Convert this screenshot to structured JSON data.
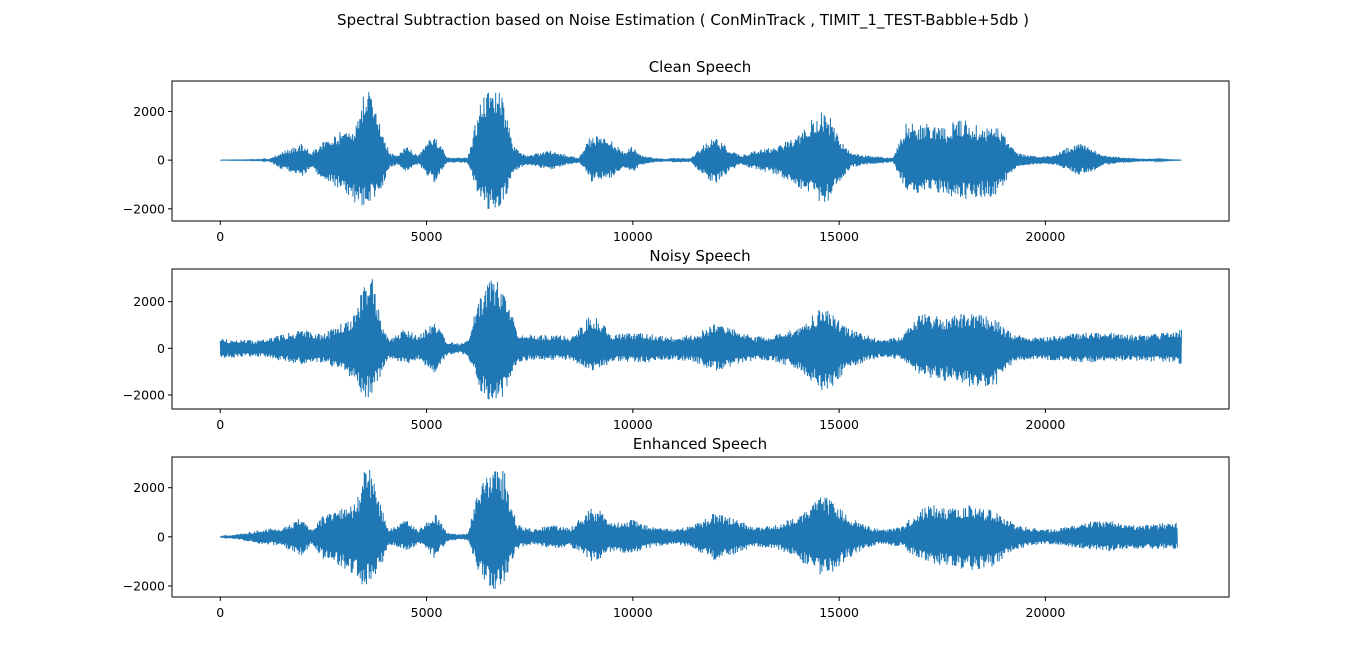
{
  "figure": {
    "suptitle": "Spectral Subtraction based on Noise Estimation ( ConMinTrack , TIMIT_1_TEST-Babble+5db )"
  },
  "chart_data": [
    {
      "type": "line",
      "title": "Clean Speech",
      "xlabel": "",
      "ylabel": "",
      "xlim": [
        -1170,
        24450
      ],
      "ylim": [
        -2500,
        3250
      ],
      "x_ticks": [
        0,
        5000,
        10000,
        15000,
        20000
      ],
      "x_tick_labels": [
        "0",
        "5000",
        "10000",
        "15000",
        "20000"
      ],
      "y_ticks": [
        -2000,
        0,
        2000
      ],
      "y_tick_labels": [
        "−2000",
        "0",
        "2000"
      ],
      "color": "#1f77b4",
      "grid": false,
      "n_samples": 23300,
      "envelope_x": [
        0,
        1000,
        1200,
        1500,
        2000,
        2200,
        2500,
        2800,
        3000,
        3300,
        3500,
        3700,
        3900,
        4100,
        4300,
        4500,
        4800,
        5000,
        5200,
        5500,
        5800,
        6000,
        6300,
        6500,
        6700,
        6900,
        7100,
        7400,
        7700,
        8000,
        8300,
        8700,
        9000,
        9200,
        9500,
        9800,
        10000,
        10200,
        10500,
        10800,
        11000,
        11400,
        11800,
        12000,
        12300,
        12600,
        12800,
        13000,
        13500,
        14000,
        14300,
        14600,
        14800,
        15000,
        15300,
        15600,
        16000,
        16300,
        16600,
        17000,
        17300,
        17600,
        17900,
        18200,
        18500,
        18800,
        19000,
        19300,
        19600,
        19900,
        20200,
        20500,
        20800,
        21100,
        21400,
        21700,
        22000,
        22300,
        22600,
        23000,
        23300
      ],
      "envelope_pos": [
        5,
        20,
        60,
        350,
        700,
        300,
        800,
        1000,
        1300,
        1500,
        3000,
        2900,
        1500,
        300,
        200,
        600,
        200,
        700,
        1100,
        100,
        100,
        120,
        2400,
        3000,
        3000,
        2400,
        600,
        200,
        300,
        400,
        250,
        100,
        1100,
        1000,
        800,
        300,
        600,
        200,
        100,
        50,
        100,
        80,
        800,
        1000,
        500,
        200,
        300,
        400,
        600,
        1100,
        1600,
        2000,
        1800,
        900,
        300,
        200,
        150,
        80,
        1500,
        1500,
        1500,
        1300,
        1800,
        1500,
        1400,
        1400,
        1000,
        300,
        200,
        150,
        200,
        500,
        700,
        500,
        200,
        150,
        100,
        70,
        50,
        20,
        5
      ],
      "envelope_neg": [
        -5,
        -20,
        -60,
        -400,
        -700,
        -300,
        -900,
        -1100,
        -1300,
        -1900,
        -1900,
        -1700,
        -1300,
        -300,
        -200,
        -500,
        -200,
        -600,
        -1000,
        -100,
        -100,
        -120,
        -1700,
        -2100,
        -2000,
        -1700,
        -500,
        -200,
        -300,
        -400,
        -250,
        -100,
        -900,
        -800,
        -700,
        -300,
        -500,
        -200,
        -100,
        -50,
        -100,
        -80,
        -800,
        -1000,
        -500,
        -200,
        -300,
        -400,
        -600,
        -1100,
        -1400,
        -1800,
        -1600,
        -900,
        -300,
        -200,
        -150,
        -80,
        -1200,
        -1400,
        -1300,
        -1500,
        -1600,
        -1700,
        -1500,
        -1500,
        -1000,
        -300,
        -200,
        -150,
        -200,
        -400,
        -600,
        -500,
        -200,
        -150,
        -100,
        -70,
        -50,
        -20,
        -5
      ]
    },
    {
      "type": "line",
      "title": "Noisy Speech",
      "xlabel": "",
      "ylabel": "",
      "xlim": [
        -1170,
        24450
      ],
      "ylim": [
        -2600,
        3400
      ],
      "x_ticks": [
        0,
        5000,
        10000,
        15000,
        20000
      ],
      "x_tick_labels": [
        "0",
        "5000",
        "10000",
        "15000",
        "20000"
      ],
      "y_ticks": [
        -2000,
        0,
        2000
      ],
      "y_tick_labels": [
        "−2000",
        "0",
        "2000"
      ],
      "color": "#1f77b4",
      "grid": false,
      "n_samples": 23300,
      "envelope_x": [
        0,
        1000,
        1500,
        2000,
        2500,
        2800,
        3000,
        3300,
        3500,
        3700,
        3900,
        4100,
        4500,
        4800,
        5000,
        5200,
        5500,
        5800,
        6000,
        6300,
        6500,
        6700,
        6900,
        7200,
        7600,
        8000,
        8500,
        9000,
        9200,
        9500,
        10000,
        10500,
        11000,
        11500,
        12000,
        12500,
        13000,
        13500,
        14000,
        14300,
        14600,
        14800,
        15200,
        15600,
        16000,
        16500,
        17000,
        17300,
        17600,
        17900,
        18200,
        18500,
        18800,
        19000,
        19300,
        19600,
        20000,
        20500,
        21000,
        21500,
        22000,
        22500,
        23000,
        23300
      ],
      "envelope_pos": [
        400,
        350,
        600,
        800,
        600,
        1000,
        1100,
        1500,
        3200,
        3000,
        1200,
        400,
        900,
        500,
        900,
        1200,
        300,
        200,
        400,
        2400,
        3000,
        3100,
        2600,
        600,
        600,
        600,
        500,
        1500,
        1300,
        600,
        700,
        600,
        500,
        600,
        1100,
        800,
        500,
        600,
        900,
        1400,
        1800,
        1600,
        900,
        600,
        400,
        500,
        1600,
        1500,
        1400,
        1500,
        1600,
        1400,
        1300,
        900,
        600,
        500,
        500,
        600,
        700,
        700,
        600,
        600,
        700,
        800
      ],
      "envelope_neg": [
        -400,
        -350,
        -550,
        -700,
        -600,
        -900,
        -1100,
        -1500,
        -2200,
        -2000,
        -1200,
        -400,
        -700,
        -500,
        -800,
        -1100,
        -300,
        -200,
        -400,
        -1800,
        -2200,
        -2300,
        -2000,
        -600,
        -500,
        -500,
        -500,
        -1000,
        -900,
        -600,
        -600,
        -600,
        -500,
        -600,
        -1000,
        -700,
        -500,
        -600,
        -900,
        -1400,
        -1900,
        -1700,
        -900,
        -600,
        -400,
        -500,
        -1200,
        -1300,
        -1400,
        -1500,
        -1700,
        -1800,
        -1700,
        -900,
        -600,
        -500,
        -500,
        -600,
        -600,
        -600,
        -500,
        -600,
        -600,
        -700
      ]
    },
    {
      "type": "line",
      "title": "Enhanced Speech",
      "xlabel": "",
      "ylabel": "",
      "xlim": [
        -1170,
        24450
      ],
      "ylim": [
        -2450,
        3250
      ],
      "x_ticks": [
        0,
        5000,
        10000,
        15000,
        20000
      ],
      "x_tick_labels": [
        "0",
        "5000",
        "10000",
        "15000",
        "20000"
      ],
      "y_ticks": [
        -2000,
        0,
        2000
      ],
      "y_tick_labels": [
        "−2000",
        "0",
        "2000"
      ],
      "color": "#1f77b4",
      "grid": false,
      "n_samples": 23200,
      "envelope_x": [
        0,
        400,
        1000,
        1500,
        2000,
        2200,
        2500,
        2800,
        3000,
        3300,
        3500,
        3700,
        3900,
        4100,
        4500,
        4800,
        5000,
        5200,
        5500,
        5800,
        6000,
        6300,
        6500,
        6700,
        6900,
        7200,
        7600,
        8000,
        8500,
        9000,
        9200,
        9500,
        10000,
        10500,
        11000,
        11500,
        12000,
        12500,
        13000,
        13500,
        14000,
        14300,
        14600,
        14800,
        15200,
        15600,
        16000,
        16500,
        17000,
        17300,
        17600,
        17900,
        18200,
        18500,
        18800,
        19000,
        19300,
        19600,
        20000,
        20500,
        21000,
        21500,
        22000,
        22500,
        23000,
        23200
      ],
      "envelope_pos": [
        10,
        100,
        300,
        400,
        800,
        300,
        900,
        1100,
        1300,
        1400,
        2800,
        2700,
        1200,
        300,
        700,
        300,
        600,
        1000,
        200,
        100,
        150,
        2200,
        2700,
        3000,
        2600,
        500,
        300,
        500,
        400,
        1200,
        1100,
        600,
        700,
        400,
        300,
        500,
        1000,
        700,
        400,
        500,
        900,
        1400,
        1700,
        1500,
        900,
        500,
        300,
        400,
        1200,
        1300,
        1200,
        1300,
        1400,
        1200,
        1100,
        800,
        500,
        400,
        300,
        400,
        600,
        700,
        500,
        500,
        600,
        600
      ],
      "envelope_neg": [
        -10,
        -100,
        -300,
        -400,
        -800,
        -300,
        -900,
        -1100,
        -1300,
        -1700,
        -2100,
        -1800,
        -1200,
        -300,
        -600,
        -300,
        -500,
        -900,
        -200,
        -100,
        -150,
        -1600,
        -2000,
        -2200,
        -1800,
        -500,
        -300,
        -500,
        -400,
        -1000,
        -900,
        -600,
        -700,
        -400,
        -300,
        -500,
        -1000,
        -700,
        -400,
        -500,
        -900,
        -1300,
        -1700,
        -1500,
        -900,
        -500,
        -300,
        -400,
        -1000,
        -1100,
        -1200,
        -1300,
        -1400,
        -1300,
        -1200,
        -800,
        -500,
        -400,
        -300,
        -400,
        -500,
        -600,
        -500,
        -500,
        -500,
        -500
      ]
    }
  ]
}
